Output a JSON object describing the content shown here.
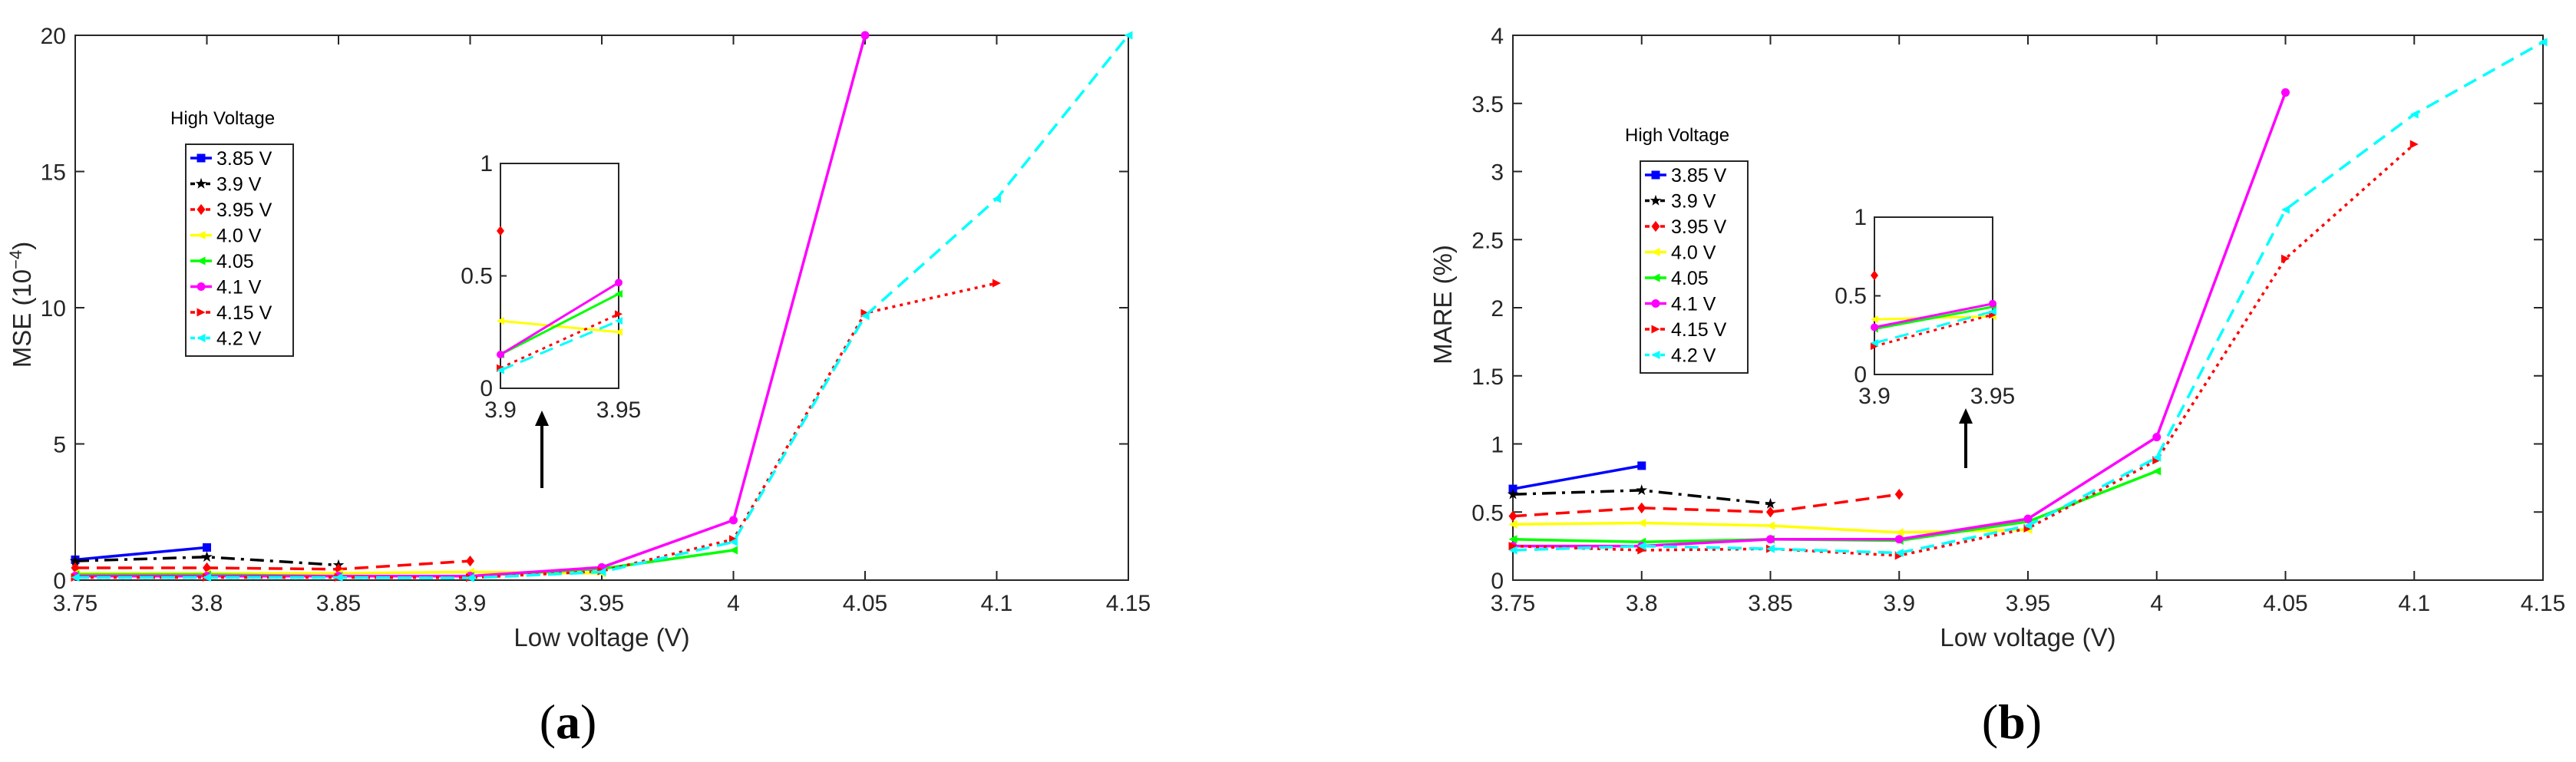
{
  "panels": [
    {
      "label": "(",
      "letter": "a",
      "close": ")"
    },
    {
      "label": "(",
      "letter": "b",
      "close": ")"
    }
  ],
  "chart_data": [
    {
      "type": "line",
      "panel_letter": "a",
      "xlabel": "Low voltage (V)",
      "ylabel": "MSE (10",
      "ylabel_sup": "−4",
      "ylabel_close": ")",
      "xlim": [
        3.75,
        4.15
      ],
      "ylim": [
        0,
        20
      ],
      "xticks": [
        "3.75",
        "3.8",
        "3.85",
        "3.9",
        "3.95",
        "4",
        "4.05",
        "4.1",
        "4.15"
      ],
      "yticks": [
        "0",
        "5",
        "10",
        "15",
        "20"
      ],
      "legend_title": "High Voltage",
      "legend_placement": "upper-left",
      "series": [
        {
          "name": "3.85 V",
          "color": "#0000ff",
          "dash": "solid",
          "marker": "square",
          "x": [
            3.75,
            3.8
          ],
          "y": [
            0.75,
            1.2
          ]
        },
        {
          "name": "3.9 V",
          "color": "#000000",
          "dash": "dashdot",
          "marker": "star",
          "x": [
            3.75,
            3.8,
            3.85
          ],
          "y": [
            0.7,
            0.85,
            0.55
          ]
        },
        {
          "name": "3.95 V",
          "color": "#ff0000",
          "dash": "dash",
          "marker": "diamond",
          "x": [
            3.75,
            3.8,
            3.85,
            3.9
          ],
          "y": [
            0.45,
            0.45,
            0.4,
            0.7
          ]
        },
        {
          "name": "4.0 V",
          "color": "#ffff00",
          "dash": "solid",
          "marker": "triangle-left",
          "x": [
            3.75,
            3.8,
            3.85,
            3.9,
            3.95
          ],
          "y": [
            0.25,
            0.25,
            0.25,
            0.3,
            0.25
          ]
        },
        {
          "name": "4.05",
          "color": "#00ff00",
          "dash": "solid",
          "marker": "triangle-left",
          "x": [
            3.75,
            3.8,
            3.85,
            3.9,
            3.95,
            4.0
          ],
          "y": [
            0.2,
            0.2,
            0.15,
            0.15,
            0.42,
            1.1
          ]
        },
        {
          "name": "4.1 V",
          "color": "#ff00ff",
          "dash": "solid",
          "marker": "circle",
          "x": [
            3.75,
            3.8,
            3.85,
            3.9,
            3.95,
            4.0,
            4.05
          ],
          "y": [
            0.15,
            0.15,
            0.15,
            0.15,
            0.47,
            2.2,
            20
          ]
        },
        {
          "name": "4.15 V",
          "color": "#ff0000",
          "dash": "dot",
          "marker": "triangle-right",
          "x": [
            3.75,
            3.8,
            3.85,
            3.9,
            3.95,
            4.0,
            4.05,
            4.1
          ],
          "y": [
            0.1,
            0.1,
            0.1,
            0.09,
            0.33,
            1.5,
            9.8,
            10.9
          ]
        },
        {
          "name": "4.2 V",
          "color": "#00ffff",
          "dash": "dash",
          "marker": "triangle-left",
          "x": [
            3.75,
            3.8,
            3.85,
            3.9,
            3.95,
            4.0,
            4.05,
            4.1,
            4.15
          ],
          "y": [
            0.1,
            0.1,
            0.1,
            0.08,
            0.3,
            1.4,
            9.7,
            14,
            20
          ]
        }
      ],
      "inset": {
        "xlim": [
          3.9,
          3.95
        ],
        "ylim": [
          0,
          1
        ],
        "xticks": [
          "3.9",
          "3.95"
        ],
        "yticks": [
          "0",
          "0.5",
          "1"
        ],
        "arrow": "up",
        "series": [
          {
            "color": "#ff0000",
            "dash": "dash",
            "marker": "diamond",
            "x": [
              3.9
            ],
            "y": [
              0.7
            ]
          },
          {
            "color": "#ffff00",
            "dash": "solid",
            "marker": "triangle-left",
            "x": [
              3.9,
              3.95
            ],
            "y": [
              0.3,
              0.25
            ]
          },
          {
            "color": "#00ff00",
            "dash": "solid",
            "marker": "triangle-left",
            "x": [
              3.9,
              3.95
            ],
            "y": [
              0.15,
              0.42
            ]
          },
          {
            "color": "#ff00ff",
            "dash": "solid",
            "marker": "circle",
            "x": [
              3.9,
              3.95
            ],
            "y": [
              0.15,
              0.47
            ]
          },
          {
            "color": "#ff0000",
            "dash": "dot",
            "marker": "triangle-right",
            "x": [
              3.9,
              3.95
            ],
            "y": [
              0.09,
              0.33
            ]
          },
          {
            "color": "#00ffff",
            "dash": "dash",
            "marker": "triangle-left",
            "x": [
              3.9,
              3.95
            ],
            "y": [
              0.08,
              0.3
            ]
          }
        ]
      }
    },
    {
      "type": "line",
      "panel_letter": "b",
      "xlabel": "Low voltage (V)",
      "ylabel": "MARE (%)",
      "xlim": [
        3.75,
        4.15
      ],
      "ylim": [
        0,
        4
      ],
      "xticks": [
        "3.75",
        "3.8",
        "3.85",
        "3.9",
        "3.95",
        "4",
        "4.05",
        "4.1",
        "4.15"
      ],
      "yticks": [
        "0",
        "0.5",
        "1",
        "1.5",
        "2",
        "2.5",
        "3",
        "3.5",
        "4"
      ],
      "legend_title": "High Voltage",
      "legend_placement": "upper-left",
      "series": [
        {
          "name": "3.85 V",
          "color": "#0000ff",
          "dash": "solid",
          "marker": "square",
          "x": [
            3.75,
            3.8
          ],
          "y": [
            0.67,
            0.84
          ]
        },
        {
          "name": "3.9 V",
          "color": "#000000",
          "dash": "dashdot",
          "marker": "star",
          "x": [
            3.75,
            3.8,
            3.85
          ],
          "y": [
            0.63,
            0.66,
            0.56
          ]
        },
        {
          "name": "3.95 V",
          "color": "#ff0000",
          "dash": "dash",
          "marker": "diamond",
          "x": [
            3.75,
            3.8,
            3.85,
            3.9
          ],
          "y": [
            0.47,
            0.53,
            0.5,
            0.63
          ]
        },
        {
          "name": "4.0 V",
          "color": "#ffff00",
          "dash": "solid",
          "marker": "triangle-left",
          "x": [
            3.75,
            3.8,
            3.85,
            3.9,
            3.95
          ],
          "y": [
            0.41,
            0.42,
            0.4,
            0.35,
            0.37
          ]
        },
        {
          "name": "4.05",
          "color": "#00ff00",
          "dash": "solid",
          "marker": "triangle-left",
          "x": [
            3.75,
            3.8,
            3.85,
            3.9,
            3.95,
            4.0
          ],
          "y": [
            0.3,
            0.28,
            0.3,
            0.29,
            0.43,
            0.8
          ]
        },
        {
          "name": "4.1 V",
          "color": "#ff00ff",
          "dash": "solid",
          "marker": "circle",
          "x": [
            3.75,
            3.8,
            3.85,
            3.9,
            3.95,
            4.0,
            4.05
          ],
          "y": [
            0.25,
            0.25,
            0.3,
            0.3,
            0.45,
            1.05,
            3.58
          ]
        },
        {
          "name": "4.15 V",
          "color": "#ff0000",
          "dash": "dot",
          "marker": "triangle-right",
          "x": [
            3.75,
            3.8,
            3.85,
            3.9,
            3.95,
            4.0,
            4.05,
            4.1
          ],
          "y": [
            0.25,
            0.22,
            0.23,
            0.18,
            0.38,
            0.88,
            2.36,
            3.2
          ]
        },
        {
          "name": "4.2 V",
          "color": "#00ffff",
          "dash": "dash",
          "marker": "triangle-left",
          "x": [
            3.75,
            3.8,
            3.85,
            3.9,
            3.95,
            4.0,
            4.05,
            4.1,
            4.15
          ],
          "y": [
            0.22,
            0.25,
            0.23,
            0.2,
            0.4,
            0.9,
            2.72,
            3.42,
            3.95
          ]
        }
      ],
      "inset": {
        "xlim": [
          3.9,
          3.95
        ],
        "ylim": [
          0,
          1
        ],
        "xticks": [
          "3.9",
          "3.95"
        ],
        "yticks": [
          "0",
          "0.5",
          "1"
        ],
        "arrow": "up",
        "series": [
          {
            "color": "#ff0000",
            "dash": "dash",
            "marker": "diamond",
            "x": [
              3.9
            ],
            "y": [
              0.63
            ]
          },
          {
            "color": "#ffff00",
            "dash": "solid",
            "marker": "triangle-left",
            "x": [
              3.9,
              3.95
            ],
            "y": [
              0.35,
              0.37
            ]
          },
          {
            "color": "#00ff00",
            "dash": "solid",
            "marker": "triangle-left",
            "x": [
              3.9,
              3.95
            ],
            "y": [
              0.29,
              0.43
            ]
          },
          {
            "color": "#ff00ff",
            "dash": "solid",
            "marker": "circle",
            "x": [
              3.9,
              3.95
            ],
            "y": [
              0.3,
              0.45
            ]
          },
          {
            "color": "#ff0000",
            "dash": "dot",
            "marker": "triangle-right",
            "x": [
              3.9,
              3.95
            ],
            "y": [
              0.18,
              0.38
            ]
          },
          {
            "color": "#00ffff",
            "dash": "dash",
            "marker": "triangle-left",
            "x": [
              3.9,
              3.95
            ],
            "y": [
              0.2,
              0.4
            ]
          }
        ]
      }
    }
  ]
}
